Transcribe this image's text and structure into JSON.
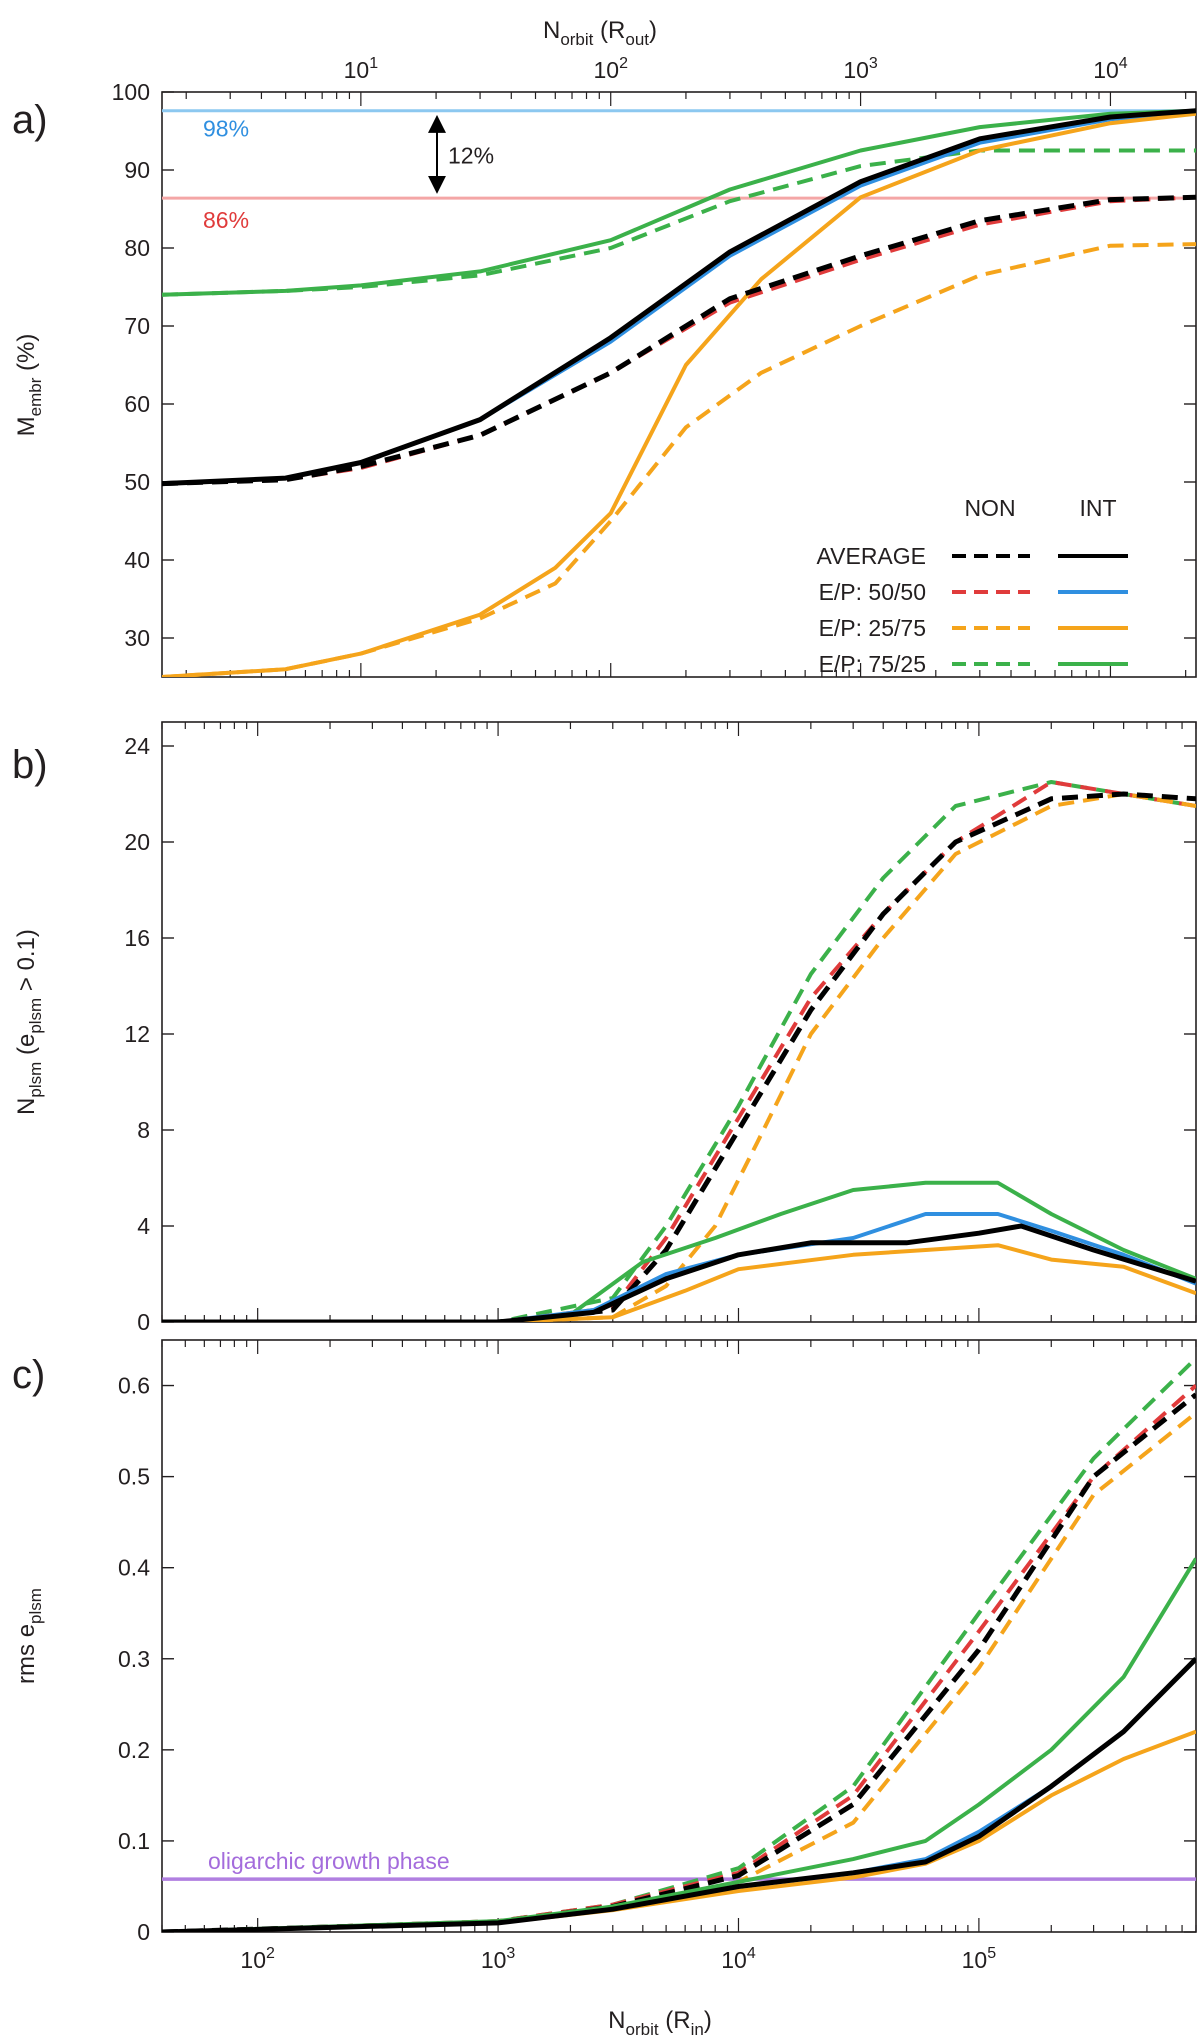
{
  "chart_data": [
    {
      "panel_label": "a)",
      "type": "line",
      "top_axis_label": {
        "main": "N",
        "sub": "orbit",
        "rest": " (R",
        "sub2": "out",
        "close": ")"
      },
      "x_scale": "log",
      "x_top_range": [
        1.6,
        22000
      ],
      "x_top_ticks": [
        {
          "value": 10,
          "base": "10",
          "exp": "1"
        },
        {
          "value": 100,
          "base": "10",
          "exp": "2"
        },
        {
          "value": 1000,
          "base": "10",
          "exp": "3"
        },
        {
          "value": 10000,
          "base": "10",
          "exp": "4"
        }
      ],
      "ylabel": {
        "main": "M",
        "sub": "embr",
        "rest": " (%)"
      },
      "ylim": [
        25,
        100
      ],
      "y_ticks": [
        "30",
        "40",
        "50",
        "60",
        "70",
        "80",
        "90",
        "100"
      ],
      "hlines": [
        {
          "value": 97.6,
          "color": "#8cc8f0",
          "label": "98%",
          "label_color": "#2f8fe0"
        },
        {
          "value": 86.4,
          "color": "#f4a6a6",
          "label": "86%",
          "label_color": "#e03b3b"
        }
      ],
      "difference_annotation": {
        "text": "12%",
        "from": 97.6,
        "to": 86.4
      },
      "legend": {
        "headers": [
          "NON",
          "INT"
        ],
        "rows": [
          {
            "label": "AVERAGE",
            "color": "#000000"
          },
          {
            "label": "E/P: 50/50",
            "color_non": "#e03b3b",
            "color_int": "#2f8fe0"
          },
          {
            "label": "E/P: 25/75",
            "color": "#f5a41b"
          },
          {
            "label": "E/P: 75/25",
            "color": "#3bb14a"
          }
        ]
      },
      "series": [
        {
          "name": "E/P: 75/25 NON",
          "style": "dashed",
          "color": "#3bb14a",
          "x": [
            1.6,
            5,
            10,
            30,
            100,
            300,
            1000,
            3000,
            10000,
            22000
          ],
          "y": [
            74,
            74.5,
            75,
            76.5,
            80,
            86,
            90.5,
            92.5,
            92.5,
            92.5
          ]
        },
        {
          "name": "E/P: 75/25 INT",
          "style": "solid",
          "color": "#3bb14a",
          "x": [
            1.6,
            5,
            10,
            30,
            100,
            300,
            1000,
            3000,
            10000,
            22000
          ],
          "y": [
            74,
            74.5,
            75.2,
            77,
            81,
            87.5,
            92.5,
            95.5,
            97.2,
            97.6
          ]
        },
        {
          "name": "E/P: 50/50 INT",
          "style": "solid",
          "color": "#2f8fe0",
          "x": [
            1.6,
            5,
            10,
            30,
            100,
            300,
            1000,
            3000,
            10000,
            22000
          ],
          "y": [
            49.8,
            50.5,
            52.5,
            58,
            68,
            79,
            88,
            93.5,
            96.5,
            97.5
          ]
        },
        {
          "name": "E/P: 50/50 NON",
          "style": "dashed",
          "color": "#e03b3b",
          "x": [
            1.6,
            5,
            10,
            30,
            100,
            300,
            1000,
            3000,
            10000,
            22000
          ],
          "y": [
            49.8,
            50.3,
            51.8,
            56,
            64,
            73,
            78.5,
            83,
            86,
            86.5
          ]
        },
        {
          "name": "E/P: 25/75 INT",
          "style": "solid",
          "color": "#f5a41b",
          "x": [
            1.6,
            5,
            10,
            30,
            60,
            100,
            200,
            400,
            1000,
            3000,
            10000,
            22000
          ],
          "y": [
            25,
            26,
            28,
            33,
            39,
            46,
            65,
            76,
            86.5,
            92.5,
            96,
            97.2
          ]
        },
        {
          "name": "E/P: 25/75 NON",
          "style": "dashed",
          "color": "#f5a41b",
          "x": [
            1.6,
            5,
            10,
            30,
            60,
            100,
            200,
            400,
            1000,
            3000,
            10000,
            22000
          ],
          "y": [
            25,
            26,
            28,
            32.5,
            37,
            45,
            57,
            64,
            70,
            76.5,
            80.3,
            80.5
          ]
        },
        {
          "name": "AVERAGE NON",
          "style": "dashed",
          "color": "#000000",
          "x": [
            1.6,
            5,
            10,
            30,
            100,
            300,
            1000,
            3000,
            10000,
            22000
          ],
          "y": [
            49.8,
            50.3,
            52,
            56,
            64,
            73.5,
            79,
            83.5,
            86.2,
            86.5
          ]
        },
        {
          "name": "AVERAGE INT",
          "style": "solid",
          "color": "#000000",
          "x": [
            1.6,
            5,
            10,
            30,
            100,
            300,
            1000,
            3000,
            10000,
            22000
          ],
          "y": [
            49.8,
            50.5,
            52.5,
            58,
            68.5,
            79.5,
            88.5,
            94,
            96.8,
            97.6
          ]
        }
      ]
    },
    {
      "panel_label": "b)",
      "type": "line",
      "x_scale": "log",
      "xlim": [
        40,
        800000
      ],
      "ylabel": {
        "main": "N",
        "sub": "plsm",
        "rest": " (e",
        "sub2": "plsm",
        "close": " > 0.1)"
      },
      "ylim": [
        0,
        25
      ],
      "y_ticks": [
        "0",
        "4",
        "8",
        "12",
        "16",
        "20",
        "24"
      ],
      "series": [
        {
          "name": "E/P: 75/25 NON",
          "style": "dashed",
          "color": "#3bb14a",
          "x": [
            40,
            1000,
            3000,
            5000,
            10000,
            20000,
            40000,
            80000,
            200000,
            400000,
            800000
          ],
          "y": [
            0,
            0,
            1,
            4,
            9,
            14.5,
            18.5,
            21.5,
            22.5,
            22,
            21.5
          ]
        },
        {
          "name": "E/P: 50/50 NON",
          "style": "dashed",
          "color": "#e03b3b",
          "x": [
            40,
            1000,
            3000,
            5000,
            10000,
            20000,
            40000,
            80000,
            200000,
            400000,
            800000
          ],
          "y": [
            0,
            0,
            0.6,
            3.5,
            8.5,
            13.5,
            17,
            20,
            22.5,
            22,
            21.5
          ]
        },
        {
          "name": "E/P: 25/75 NON",
          "style": "dashed",
          "color": "#f5a41b",
          "x": [
            40,
            1000,
            3000,
            5000,
            8000,
            12000,
            20000,
            40000,
            80000,
            200000,
            400000,
            800000
          ],
          "y": [
            0,
            0,
            0.2,
            1.5,
            4,
            7.5,
            12,
            16,
            19.5,
            21.5,
            22,
            21.5
          ]
        },
        {
          "name": "AVERAGE NON",
          "style": "dashed",
          "color": "#000000",
          "x": [
            40,
            1000,
            3000,
            5000,
            10000,
            20000,
            40000,
            80000,
            200000,
            400000,
            800000
          ],
          "y": [
            0,
            0,
            0.5,
            3,
            8,
            13,
            17,
            20,
            21.8,
            22,
            21.8
          ]
        },
        {
          "name": "E/P: 75/25 INT",
          "style": "solid",
          "color": "#3bb14a",
          "x": [
            40,
            1000,
            2000,
            4000,
            8000,
            15000,
            30000,
            60000,
            120000,
            200000,
            400000,
            800000
          ],
          "y": [
            0,
            0,
            0.3,
            2.5,
            3.5,
            4.5,
            5.5,
            5.8,
            5.8,
            4.5,
            3,
            1.8
          ]
        },
        {
          "name": "E/P: 50/50 INT",
          "style": "solid",
          "color": "#2f8fe0",
          "x": [
            40,
            1000,
            2500,
            5000,
            10000,
            30000,
            60000,
            120000,
            200000,
            400000,
            800000
          ],
          "y": [
            0,
            0,
            0.5,
            2,
            2.8,
            3.5,
            4.5,
            4.5,
            3.8,
            2.8,
            1.6
          ]
        },
        {
          "name": "E/P: 25/75 INT",
          "style": "solid",
          "color": "#f5a41b",
          "x": [
            40,
            1000,
            3000,
            6000,
            10000,
            30000,
            60000,
            120000,
            200000,
            400000,
            800000
          ],
          "y": [
            0,
            0,
            0.2,
            1.3,
            2.2,
            2.8,
            3,
            3.2,
            2.6,
            2.3,
            1.2
          ]
        },
        {
          "name": "AVERAGE INT",
          "style": "solid",
          "color": "#000000",
          "x": [
            40,
            1000,
            2500,
            5000,
            10000,
            20000,
            50000,
            100000,
            150000,
            300000,
            800000
          ],
          "y": [
            0,
            0,
            0.4,
            1.8,
            2.8,
            3.3,
            3.3,
            3.7,
            4,
            3,
            1.7
          ]
        }
      ]
    },
    {
      "panel_label": "c)",
      "type": "line",
      "x_scale": "log",
      "xlim": [
        40,
        800000
      ],
      "x_ticks": [
        {
          "value": 100,
          "base": "10",
          "exp": "2"
        },
        {
          "value": 1000,
          "base": "10",
          "exp": "3"
        },
        {
          "value": 10000,
          "base": "10",
          "exp": "4"
        },
        {
          "value": 100000,
          "base": "10",
          "exp": "5"
        }
      ],
      "xlabel": {
        "main": "N",
        "sub": "orbit",
        "rest": " (R",
        "sub2": "in",
        "close": ")"
      },
      "ylabel": {
        "main": "rms e",
        "sub": "plsm"
      },
      "ylim": [
        0,
        0.65
      ],
      "y_ticks": [
        "0",
        "0.1",
        "0.2",
        "0.3",
        "0.4",
        "0.5",
        "0.6"
      ],
      "hline": {
        "value": 0.058,
        "color": "#b07fe0",
        "label": "oligarchic growth phase",
        "label_color": "#a46cdc"
      },
      "series": [
        {
          "name": "E/P: 75/25 NON",
          "style": "dashed",
          "color": "#3bb14a",
          "x": [
            40,
            1000,
            3000,
            10000,
            30000,
            100000,
            300000,
            800000
          ],
          "y": [
            0,
            0.012,
            0.03,
            0.07,
            0.16,
            0.35,
            0.52,
            0.63
          ]
        },
        {
          "name": "E/P: 50/50 NON",
          "style": "dashed",
          "color": "#e03b3b",
          "x": [
            40,
            1000,
            3000,
            10000,
            30000,
            100000,
            300000,
            800000
          ],
          "y": [
            0,
            0.012,
            0.03,
            0.065,
            0.15,
            0.33,
            0.5,
            0.6
          ]
        },
        {
          "name": "E/P: 25/75 NON",
          "style": "dashed",
          "color": "#f5a41b",
          "x": [
            40,
            1000,
            3000,
            10000,
            30000,
            100000,
            300000,
            800000
          ],
          "y": [
            0,
            0.01,
            0.025,
            0.055,
            0.12,
            0.29,
            0.48,
            0.57
          ]
        },
        {
          "name": "AVERAGE NON",
          "style": "dashed",
          "color": "#000000",
          "x": [
            40,
            1000,
            3000,
            10000,
            30000,
            100000,
            300000,
            800000
          ],
          "y": [
            0,
            0.011,
            0.028,
            0.062,
            0.14,
            0.31,
            0.5,
            0.59
          ]
        },
        {
          "name": "E/P: 75/25 INT",
          "style": "solid",
          "color": "#3bb14a",
          "x": [
            40,
            1000,
            3000,
            10000,
            30000,
            60000,
            100000,
            200000,
            400000,
            800000
          ],
          "y": [
            0,
            0.012,
            0.028,
            0.055,
            0.08,
            0.1,
            0.14,
            0.2,
            0.28,
            0.41
          ]
        },
        {
          "name": "E/P: 50/50 INT",
          "style": "solid",
          "color": "#2f8fe0",
          "x": [
            40,
            1000,
            3000,
            10000,
            30000,
            60000,
            100000,
            200000,
            400000,
            800000
          ],
          "y": [
            0,
            0.01,
            0.025,
            0.05,
            0.065,
            0.08,
            0.11,
            0.16,
            0.22,
            0.3
          ]
        },
        {
          "name": "E/P: 25/75 INT",
          "style": "solid",
          "color": "#f5a41b",
          "x": [
            40,
            1000,
            3000,
            10000,
            30000,
            60000,
            100000,
            200000,
            400000,
            800000
          ],
          "y": [
            0,
            0.01,
            0.024,
            0.045,
            0.06,
            0.075,
            0.1,
            0.15,
            0.19,
            0.22
          ]
        },
        {
          "name": "AVERAGE INT",
          "style": "solid",
          "color": "#000000",
          "x": [
            40,
            1000,
            3000,
            10000,
            30000,
            60000,
            100000,
            200000,
            400000,
            800000
          ],
          "y": [
            0,
            0.01,
            0.025,
            0.05,
            0.065,
            0.077,
            0.105,
            0.16,
            0.22,
            0.3
          ]
        }
      ]
    }
  ]
}
